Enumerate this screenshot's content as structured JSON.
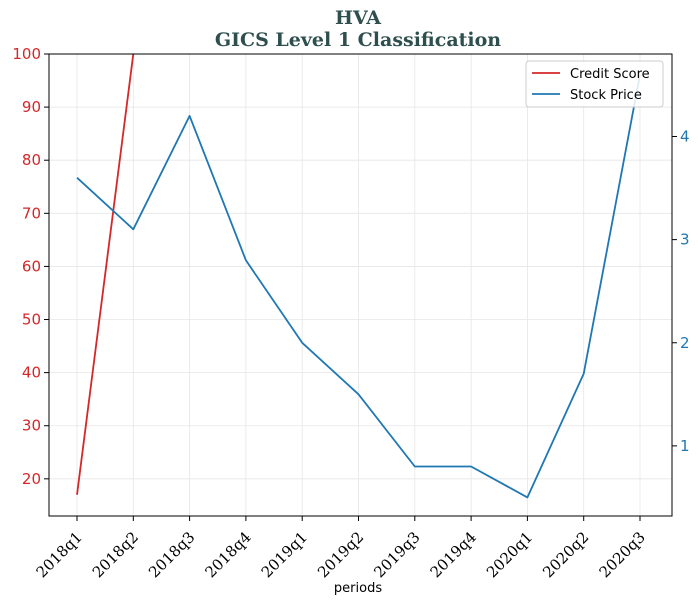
{
  "chart_data": {
    "type": "line",
    "title_line1": "HVA",
    "title_line2": "GICS Level 1 Classification",
    "xlabel": "periods",
    "categories": [
      "2018q1",
      "2018q2",
      "2018q3",
      "2018q4",
      "2019q1",
      "2019q2",
      "2019q3",
      "2019q4",
      "2020q1",
      "2020q2",
      "2020q3"
    ],
    "left_axis": {
      "ylim": [
        13,
        100
      ],
      "ticks": [
        20,
        30,
        40,
        50,
        60,
        70,
        80,
        90,
        100
      ],
      "color": "#d62728"
    },
    "right_axis": {
      "ylim": [
        0.32,
        4.8
      ],
      "ticks": [
        1,
        2,
        3,
        4
      ],
      "color": "#1f77b4"
    },
    "grid": true,
    "legend_placement": "top-right",
    "series": [
      {
        "name": "Credit Score",
        "axis": "left",
        "color": "#d62728",
        "values": [
          17,
          100,
          null,
          null,
          null,
          null,
          null,
          null,
          null,
          null,
          null
        ]
      },
      {
        "name": "Stock Price",
        "axis": "right",
        "color": "#1f77b4",
        "values": [
          3.6,
          3.1,
          4.2,
          2.8,
          2.0,
          1.5,
          0.8,
          0.8,
          0.5,
          1.7,
          4.6
        ]
      }
    ]
  }
}
